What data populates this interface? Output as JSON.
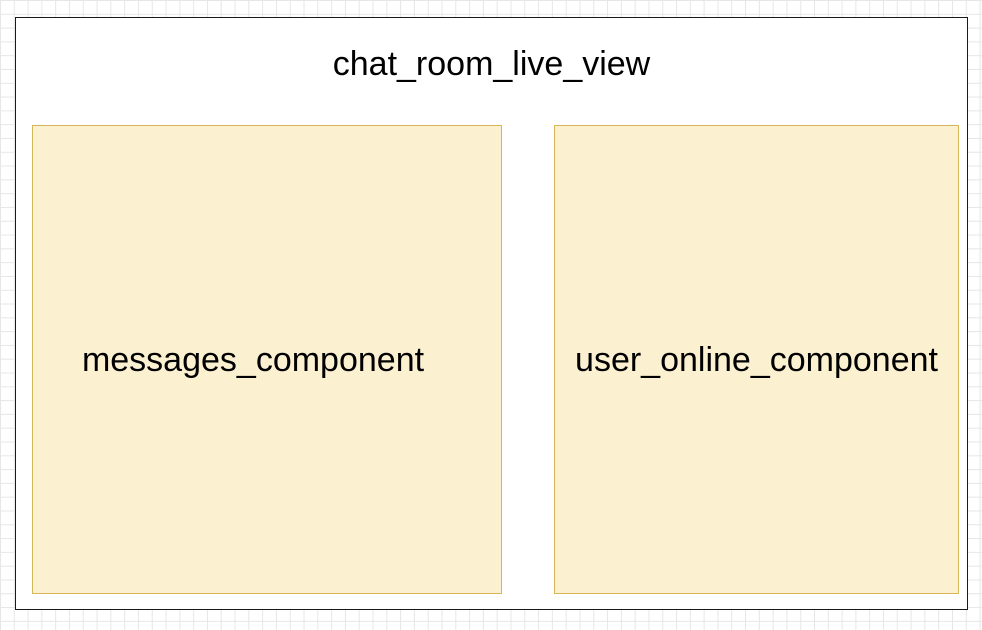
{
  "container": {
    "label": "chat_room_live_view"
  },
  "components": [
    {
      "label": "messages_component"
    },
    {
      "label": "user_online_component"
    }
  ],
  "colors": {
    "container_border": "#1a1a1a",
    "component_fill": "#fbf0d0",
    "component_border": "#d6b656",
    "grid": "#e6e6e6"
  }
}
